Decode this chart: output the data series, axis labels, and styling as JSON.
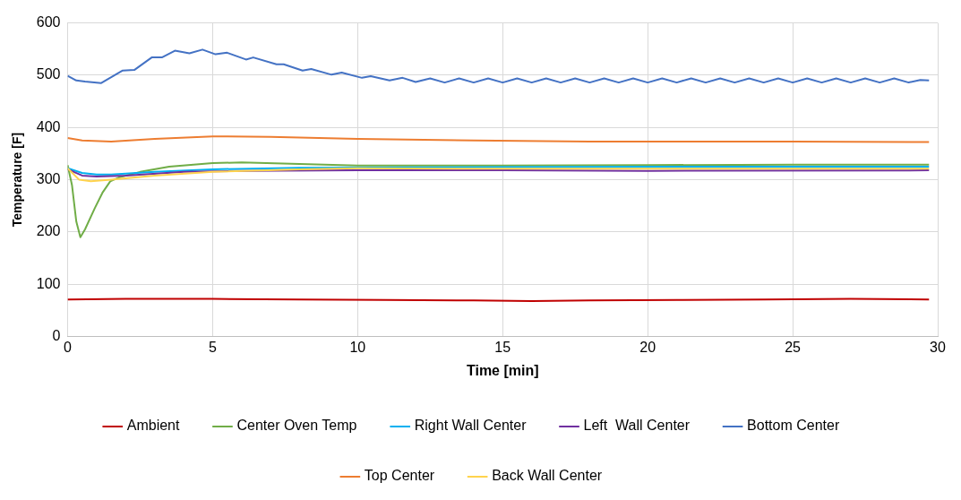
{
  "chart_data": {
    "type": "line",
    "xlabel": "Time [min]",
    "ylabel": "Temperature [F]",
    "xlim": [
      0,
      30
    ],
    "xticks": [
      0,
      5,
      10,
      15,
      20,
      25,
      30
    ],
    "ylim": [
      0,
      600
    ],
    "yticks": [
      0,
      100,
      200,
      300,
      400,
      500,
      600
    ],
    "grid": true,
    "legend": "bottom",
    "marker": "none",
    "line_style": "solid",
    "series": [
      {
        "name": "Ambient",
        "color": "#c00000",
        "x": [
          0,
          2,
          5,
          8,
          11,
          14,
          16,
          18,
          21,
          24,
          27,
          29.7
        ],
        "values": [
          71,
          72,
          72,
          71,
          70,
          69,
          68,
          69,
          70,
          71,
          72,
          71
        ]
      },
      {
        "name": "Center Oven Temp",
        "color": "#70ad47",
        "x": [
          0,
          0.15,
          0.3,
          0.44,
          0.6,
          0.94,
          1.2,
          1.47,
          1.8,
          2.5,
          3.5,
          5,
          6,
          8,
          10,
          12,
          15,
          20,
          25,
          29.7
        ],
        "values": [
          328,
          290,
          220,
          190,
          205,
          246,
          275,
          297,
          305,
          315,
          325,
          332,
          333,
          330,
          327,
          327,
          327,
          328,
          329,
          329
        ]
      },
      {
        "name": "Right Wall Center",
        "color": "#00b0f0",
        "x": [
          0,
          0.5,
          1,
          1.5,
          3,
          5,
          8,
          15,
          22,
          29.7
        ],
        "values": [
          322,
          313,
          310,
          310,
          315,
          320,
          323,
          324,
          325,
          325
        ]
      },
      {
        "name": "Left  Wall Center",
        "color": "#7030a0",
        "x": [
          0,
          0.5,
          1,
          2,
          4,
          6,
          10,
          15,
          20,
          29.7
        ],
        "values": [
          320,
          308,
          306,
          308,
          315,
          317,
          318,
          318,
          317,
          318
        ]
      },
      {
        "name": "Bottom Center",
        "color": "#4472c4",
        "x": [
          0,
          0.3,
          0.6,
          1.16,
          1.9,
          2.3,
          2.9,
          3.25,
          3.7,
          4.2,
          4.65,
          5.1,
          5.5,
          6.15,
          6.4,
          7.2,
          7.45,
          8.1,
          8.4,
          9.1,
          9.45,
          10.15,
          10.45,
          11.1,
          11.55,
          12,
          12.5,
          13,
          13.5,
          14,
          14.5,
          15,
          15.5,
          16,
          16.5,
          17,
          17.5,
          18,
          18.5,
          19,
          19.5,
          20,
          20.5,
          21,
          21.5,
          22,
          22.5,
          23,
          23.5,
          24,
          24.5,
          25,
          25.5,
          26,
          26.5,
          27,
          27.5,
          28,
          28.5,
          29,
          29.4,
          29.7
        ],
        "values": [
          499,
          490,
          488,
          485,
          509,
          510,
          534,
          534,
          547,
          542,
          549,
          540,
          543,
          530,
          534,
          521,
          521,
          509,
          512,
          501,
          505,
          495,
          498,
          490,
          495,
          487,
          494,
          486,
          494,
          486,
          494,
          486,
          494,
          486,
          494,
          486,
          494,
          486,
          494,
          486,
          494,
          486,
          494,
          486,
          494,
          486,
          494,
          486,
          494,
          486,
          494,
          486,
          494,
          486,
          494,
          486,
          494,
          486,
          494,
          486,
          491,
          490
        ]
      },
      {
        "name": "Top Center",
        "color": "#ed7d31",
        "x": [
          0,
          0.5,
          1.5,
          3,
          5,
          7,
          10,
          14,
          18,
          25,
          29.7
        ],
        "values": [
          380,
          375,
          373,
          378,
          383,
          382,
          378,
          375,
          373,
          373,
          372
        ]
      },
      {
        "name": "Back Wall Center",
        "color": "#ffd34d",
        "x": [
          0,
          0.4,
          0.8,
          1.5,
          3,
          5,
          8,
          10,
          15,
          29.7
        ],
        "values": [
          322,
          300,
          297,
          300,
          308,
          315,
          320,
          322,
          321,
          321
        ]
      }
    ]
  }
}
